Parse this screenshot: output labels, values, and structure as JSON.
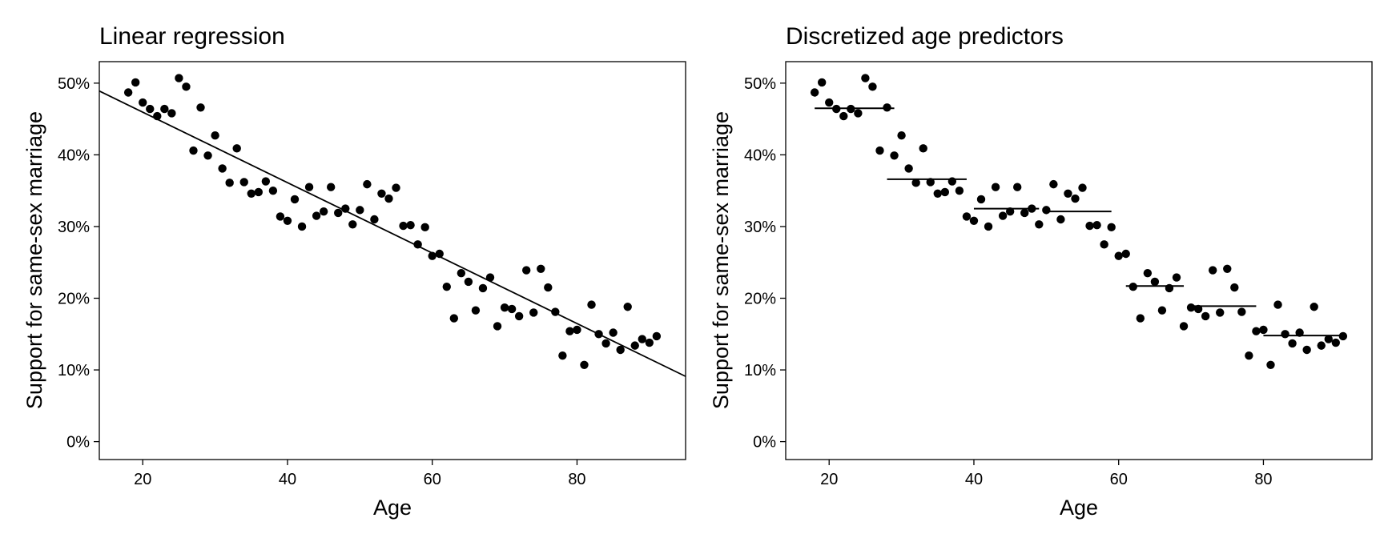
{
  "chart_data": [
    {
      "type": "scatter",
      "title": "Linear regression",
      "xlabel": "Age",
      "ylabel": "Support for same-sex marriage",
      "xlim": [
        14,
        95
      ],
      "ylim": [
        -2.5,
        53
      ],
      "x_ticks": [
        20,
        40,
        60,
        80
      ],
      "x_tick_labels": [
        "20",
        "40",
        "60",
        "80"
      ],
      "y_ticks": [
        0,
        10,
        20,
        30,
        40,
        50
      ],
      "y_tick_labels": [
        "0%",
        "10%",
        "20%",
        "30%",
        "40%",
        "50%"
      ],
      "points": [
        [
          18,
          48.7
        ],
        [
          19,
          50.1
        ],
        [
          20,
          47.3
        ],
        [
          21,
          46.4
        ],
        [
          22,
          45.4
        ],
        [
          23,
          46.4
        ],
        [
          24,
          45.8
        ],
        [
          25,
          50.7
        ],
        [
          26,
          49.5
        ],
        [
          27,
          40.6
        ],
        [
          28,
          46.6
        ],
        [
          29,
          39.9
        ],
        [
          30,
          42.7
        ],
        [
          31,
          38.1
        ],
        [
          32,
          36.1
        ],
        [
          33,
          40.9
        ],
        [
          34,
          36.2
        ],
        [
          35,
          34.6
        ],
        [
          36,
          34.8
        ],
        [
          37,
          36.3
        ],
        [
          38,
          35.0
        ],
        [
          39,
          31.4
        ],
        [
          40,
          30.8
        ],
        [
          41,
          33.8
        ],
        [
          42,
          30.0
        ],
        [
          43,
          35.5
        ],
        [
          44,
          31.5
        ],
        [
          45,
          32.1
        ],
        [
          46,
          35.5
        ],
        [
          47,
          31.9
        ],
        [
          48,
          32.5
        ],
        [
          49,
          30.3
        ],
        [
          50,
          32.3
        ],
        [
          51,
          35.9
        ],
        [
          52,
          31.0
        ],
        [
          53,
          34.6
        ],
        [
          54,
          33.9
        ],
        [
          55,
          35.4
        ],
        [
          56,
          30.1
        ],
        [
          57,
          30.2
        ],
        [
          58,
          27.5
        ],
        [
          59,
          29.9
        ],
        [
          60,
          25.9
        ],
        [
          61,
          26.2
        ],
        [
          62,
          21.6
        ],
        [
          63,
          17.2
        ],
        [
          64,
          23.5
        ],
        [
          65,
          22.3
        ],
        [
          66,
          18.3
        ],
        [
          67,
          21.4
        ],
        [
          68,
          22.9
        ],
        [
          69,
          16.1
        ],
        [
          70,
          18.7
        ],
        [
          71,
          18.5
        ],
        [
          72,
          17.5
        ],
        [
          73,
          23.9
        ],
        [
          74,
          18.0
        ],
        [
          75,
          24.1
        ],
        [
          76,
          21.5
        ],
        [
          77,
          18.1
        ],
        [
          78,
          12.0
        ],
        [
          79,
          15.4
        ],
        [
          80,
          15.6
        ],
        [
          81,
          10.7
        ],
        [
          82,
          19.1
        ],
        [
          83,
          15.0
        ],
        [
          84,
          13.7
        ],
        [
          85,
          15.2
        ],
        [
          86,
          12.8
        ],
        [
          87,
          18.8
        ],
        [
          88,
          13.4
        ],
        [
          89,
          14.3
        ],
        [
          90,
          13.8
        ],
        [
          91,
          14.7
        ]
      ],
      "fit_line": {
        "x": [
          14,
          95
        ],
        "y": [
          48.9,
          9.1
        ]
      }
    },
    {
      "type": "scatter",
      "title": "Discretized age predictors",
      "xlabel": "Age",
      "ylabel": "Support for same-sex marriage",
      "xlim": [
        14,
        95
      ],
      "ylim": [
        -2.5,
        53
      ],
      "x_ticks": [
        20,
        40,
        60,
        80
      ],
      "x_tick_labels": [
        "20",
        "40",
        "60",
        "80"
      ],
      "y_ticks": [
        0,
        10,
        20,
        30,
        40,
        50
      ],
      "y_tick_labels": [
        "0%",
        "10%",
        "20%",
        "30%",
        "40%",
        "50%"
      ],
      "points": [
        [
          18,
          48.7
        ],
        [
          19,
          50.1
        ],
        [
          20,
          47.3
        ],
        [
          21,
          46.4
        ],
        [
          22,
          45.4
        ],
        [
          23,
          46.4
        ],
        [
          24,
          45.8
        ],
        [
          25,
          50.7
        ],
        [
          26,
          49.5
        ],
        [
          27,
          40.6
        ],
        [
          28,
          46.6
        ],
        [
          29,
          39.9
        ],
        [
          30,
          42.7
        ],
        [
          31,
          38.1
        ],
        [
          32,
          36.1
        ],
        [
          33,
          40.9
        ],
        [
          34,
          36.2
        ],
        [
          35,
          34.6
        ],
        [
          36,
          34.8
        ],
        [
          37,
          36.3
        ],
        [
          38,
          35.0
        ],
        [
          39,
          31.4
        ],
        [
          40,
          30.8
        ],
        [
          41,
          33.8
        ],
        [
          42,
          30.0
        ],
        [
          43,
          35.5
        ],
        [
          44,
          31.5
        ],
        [
          45,
          32.1
        ],
        [
          46,
          35.5
        ],
        [
          47,
          31.9
        ],
        [
          48,
          32.5
        ],
        [
          49,
          30.3
        ],
        [
          50,
          32.3
        ],
        [
          51,
          35.9
        ],
        [
          52,
          31.0
        ],
        [
          53,
          34.6
        ],
        [
          54,
          33.9
        ],
        [
          55,
          35.4
        ],
        [
          56,
          30.1
        ],
        [
          57,
          30.2
        ],
        [
          58,
          27.5
        ],
        [
          59,
          29.9
        ],
        [
          60,
          25.9
        ],
        [
          61,
          26.2
        ],
        [
          62,
          21.6
        ],
        [
          63,
          17.2
        ],
        [
          64,
          23.5
        ],
        [
          65,
          22.3
        ],
        [
          66,
          18.3
        ],
        [
          67,
          21.4
        ],
        [
          68,
          22.9
        ],
        [
          69,
          16.1
        ],
        [
          70,
          18.7
        ],
        [
          71,
          18.5
        ],
        [
          72,
          17.5
        ],
        [
          73,
          23.9
        ],
        [
          74,
          18.0
        ],
        [
          75,
          24.1
        ],
        [
          76,
          21.5
        ],
        [
          77,
          18.1
        ],
        [
          78,
          12.0
        ],
        [
          79,
          15.4
        ],
        [
          80,
          15.6
        ],
        [
          81,
          10.7
        ],
        [
          82,
          19.1
        ],
        [
          83,
          15.0
        ],
        [
          84,
          13.7
        ],
        [
          85,
          15.2
        ],
        [
          86,
          12.8
        ],
        [
          87,
          18.8
        ],
        [
          88,
          13.4
        ],
        [
          89,
          14.3
        ],
        [
          90,
          13.8
        ],
        [
          91,
          14.7
        ]
      ],
      "step_segments": [
        {
          "x": [
            18,
            29
          ],
          "y": 46.5
        },
        {
          "x": [
            28,
            39
          ],
          "y": 36.6
        },
        {
          "x": [
            40,
            49
          ],
          "y": 32.5
        },
        {
          "x": [
            50,
            59
          ],
          "y": 32.1
        },
        {
          "x": [
            61,
            69
          ],
          "y": 21.7
        },
        {
          "x": [
            70,
            79
          ],
          "y": 18.9
        },
        {
          "x": [
            80,
            91
          ],
          "y": 14.8
        }
      ]
    }
  ]
}
